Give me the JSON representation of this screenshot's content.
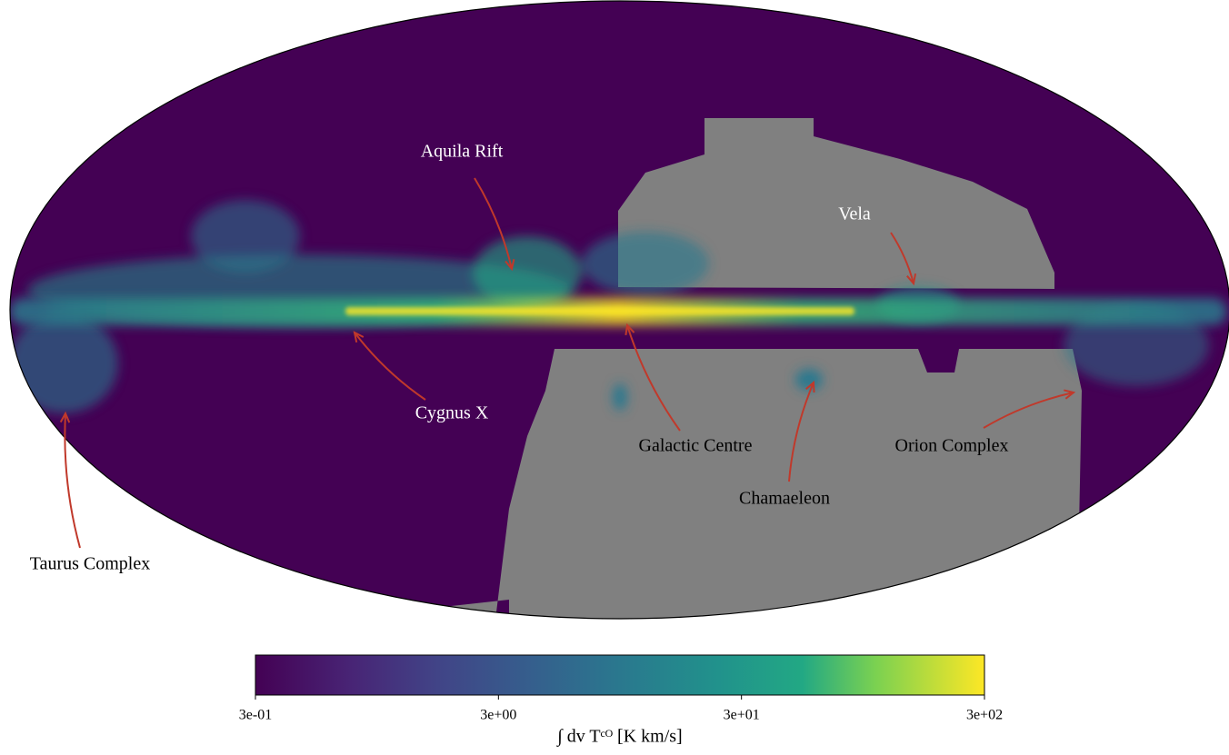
{
  "chart_data": {
    "type": "map",
    "projection": "mollweide",
    "colormap": "viridis",
    "mask_color": "#808080",
    "arrow_color": "#c0392b",
    "annotations": [
      {
        "text": "Aquila Rift",
        "color": "#ffffff"
      },
      {
        "text": "Cygnus X",
        "color": "#ffffff"
      },
      {
        "text": "Galactic Centre",
        "color": "#000000"
      },
      {
        "text": "Vela",
        "color": "#ffffff"
      },
      {
        "text": "Chamaeleon",
        "color": "#000000"
      },
      {
        "text": "Orion Complex",
        "color": "#000000"
      },
      {
        "text": "Taurus Complex",
        "color": "#000000"
      }
    ],
    "colorbar": {
      "label": "∫ dv Tᶜᴼ [K km/s]",
      "log": true,
      "xlim": [
        0.3,
        300
      ],
      "xticks": [
        {
          "value": 0.3,
          "label": "3e-01"
        },
        {
          "value": 3,
          "label": "3e+00"
        },
        {
          "value": 30,
          "label": "3e+01"
        },
        {
          "value": 300,
          "label": "3e+02"
        }
      ]
    }
  }
}
